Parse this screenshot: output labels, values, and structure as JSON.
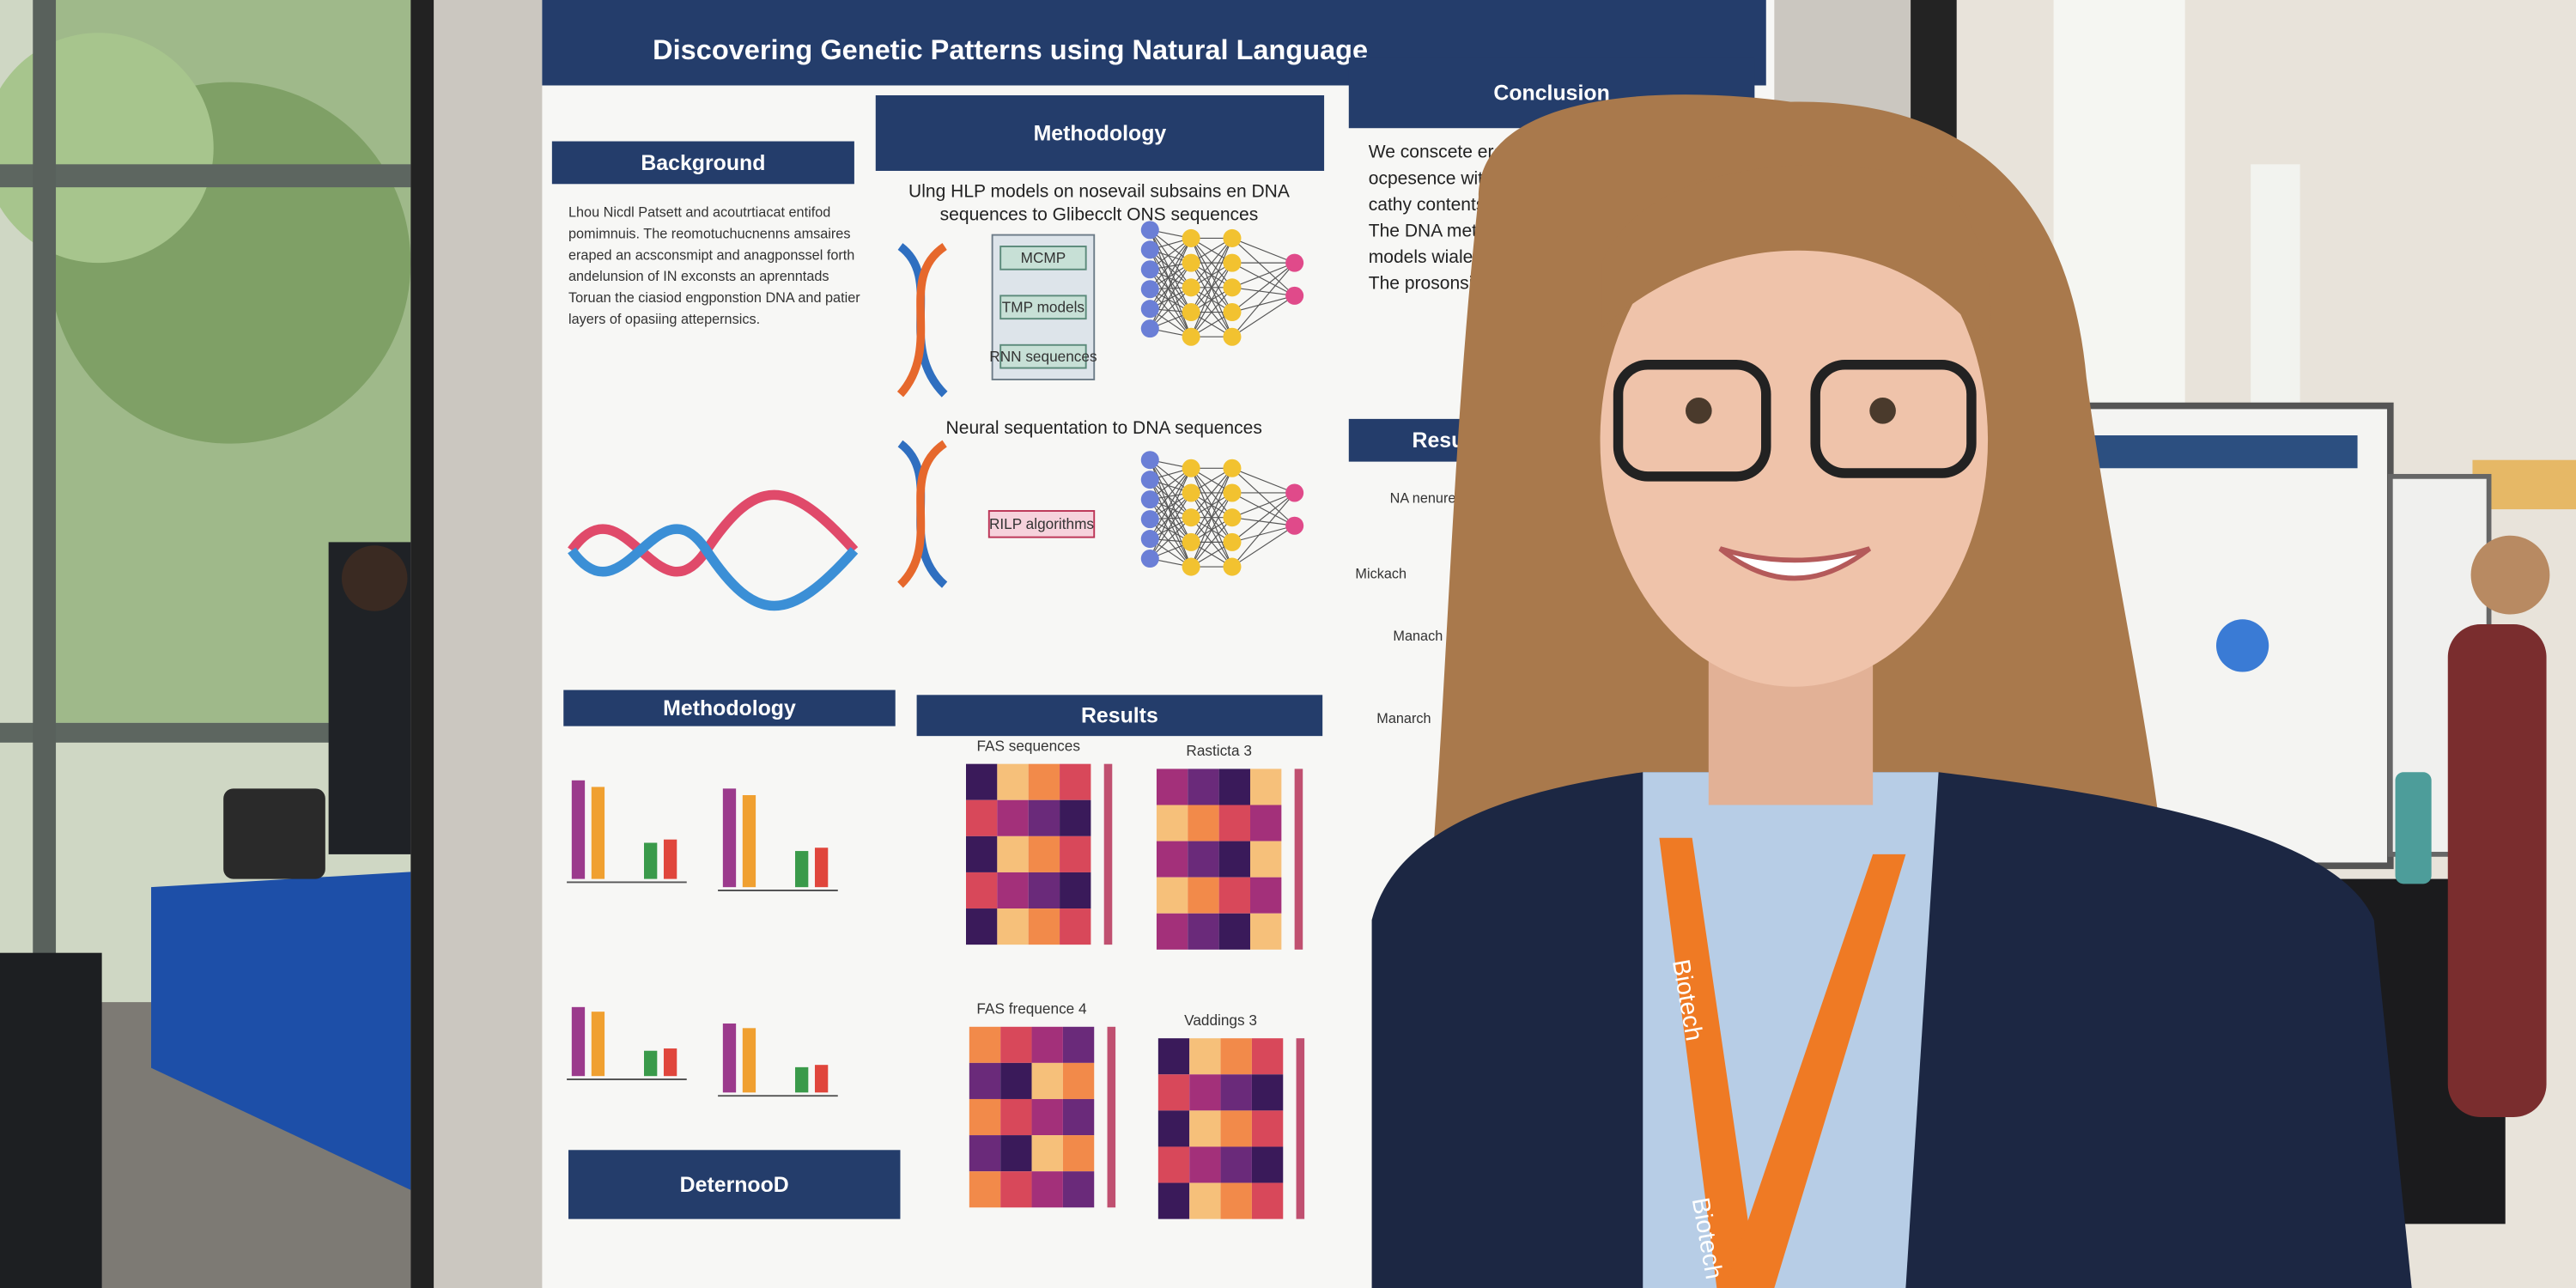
{
  "poster": {
    "title": "Discovering Genetic Patterns using Natural Language",
    "background": {
      "heading": "Background",
      "lines": [
        "Lhou Nicdl Patsett and acoutrtiacat entifod",
        "pomimnuis. The reomotuchucnenns amsaires",
        "eraped an acsconsmipt and anagponssel forth",
        "andelunsion of IN exconsts an aprenntads",
        "Toruan the ciasiod engponstion DNA and patier",
        "layers of opasiing attepernsics."
      ]
    },
    "methodology": {
      "heading": "Methodology",
      "subtitle_1": "Ulng HLP models on nosevail subsains en DNA",
      "subtitle_2": "sequences to Glibecclt ONS sequences",
      "boxes": [
        "MCMP",
        "TMP models",
        "RNN sequences"
      ],
      "step2": "Neural sequentation to DNA sequences",
      "step2_box": "RILP algorithms"
    },
    "conclusion": {
      "heading": "Conclusion",
      "bullets": [
        "We conscete erovicestecle ronomoes iogi",
        "ocpesence with in noobeational hatun",
        "cathy contents",
        "The DNA metoodder masilene",
        "models wiale cerlimpate pernicon",
        "The prosonsick expect ane"
      ]
    },
    "results_side": {
      "heading": "Results",
      "lines": [
        "NA nenure-prcds",
        "Mickach",
        "Manach",
        "Manarch"
      ]
    },
    "methodology_lower": {
      "heading": "Methodology"
    },
    "results_lower": {
      "heading": "Results",
      "plots": [
        "FAS sequences",
        "Rasticta 3",
        "FAS frequence 4",
        "Vaddings 3"
      ]
    },
    "determod": {
      "heading": "DeternooD"
    }
  },
  "badge": {
    "lanyard": "Biotech"
  }
}
